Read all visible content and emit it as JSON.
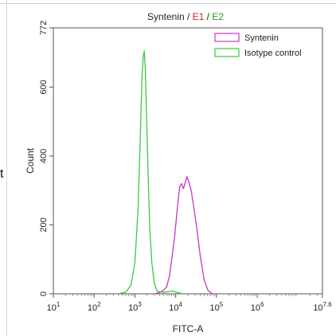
{
  "page_fragment": "t",
  "chart_data": {
    "type": "line",
    "title_parts": [
      {
        "text": "Syntenin / ",
        "color": "#222222"
      },
      {
        "text": "E1",
        "color": "#d42020"
      },
      {
        "text": " / ",
        "color": "#222222"
      },
      {
        "text": "E2",
        "color": "#1a9a1a"
      }
    ],
    "xlabel": "FITC-A",
    "ylabel": "Count",
    "x_scale": "log10",
    "xlim": [
      10,
      39810717
    ],
    "ylim": [
      0,
      772
    ],
    "x_ticks": [
      {
        "value": 10,
        "base": "10",
        "exp": "1"
      },
      {
        "value": 100,
        "base": "10",
        "exp": "2"
      },
      {
        "value": 1000,
        "base": "10",
        "exp": "3"
      },
      {
        "value": 10000,
        "base": "10",
        "exp": "4"
      },
      {
        "value": 100000,
        "base": "10",
        "exp": "5"
      },
      {
        "value": 1000000,
        "base": "10",
        "exp": "6"
      },
      {
        "value": 39810717,
        "base": "10",
        "exp": "7.6"
      }
    ],
    "y_ticks": [
      {
        "value": 0,
        "label": "0"
      },
      {
        "value": 200,
        "label": "200"
      },
      {
        "value": 400,
        "label": "400"
      },
      {
        "value": 600,
        "label": "600"
      },
      {
        "value": 772,
        "label": "772"
      }
    ],
    "legend_position": "top-right",
    "series": [
      {
        "name": "Syntenin",
        "color": "#c437c4",
        "points": [
          [
            3000,
            0
          ],
          [
            4000,
            4
          ],
          [
            5000,
            10
          ],
          [
            6000,
            20
          ],
          [
            7000,
            50
          ],
          [
            8000,
            100
          ],
          [
            9500,
            170
          ],
          [
            11000,
            250
          ],
          [
            12500,
            310
          ],
          [
            14000,
            320
          ],
          [
            15500,
            305
          ],
          [
            17000,
            320
          ],
          [
            19000,
            340
          ],
          [
            21000,
            325
          ],
          [
            24000,
            300
          ],
          [
            28000,
            250
          ],
          [
            33000,
            190
          ],
          [
            40000,
            110
          ],
          [
            50000,
            40
          ],
          [
            62000,
            10
          ],
          [
            80000,
            0
          ]
        ]
      },
      {
        "name": "Isotype control",
        "color": "#3cc83c",
        "points": [
          [
            400,
            0
          ],
          [
            600,
            5
          ],
          [
            800,
            25
          ],
          [
            1000,
            90
          ],
          [
            1200,
            250
          ],
          [
            1350,
            450
          ],
          [
            1500,
            630
          ],
          [
            1600,
            690
          ],
          [
            1700,
            705
          ],
          [
            1800,
            650
          ],
          [
            1950,
            500
          ],
          [
            2100,
            360
          ],
          [
            2300,
            200
          ],
          [
            2600,
            90
          ],
          [
            3000,
            30
          ],
          [
            3500,
            8
          ],
          [
            5000,
            4
          ],
          [
            8000,
            8
          ],
          [
            12000,
            3
          ],
          [
            15000,
            0
          ]
        ]
      }
    ]
  }
}
